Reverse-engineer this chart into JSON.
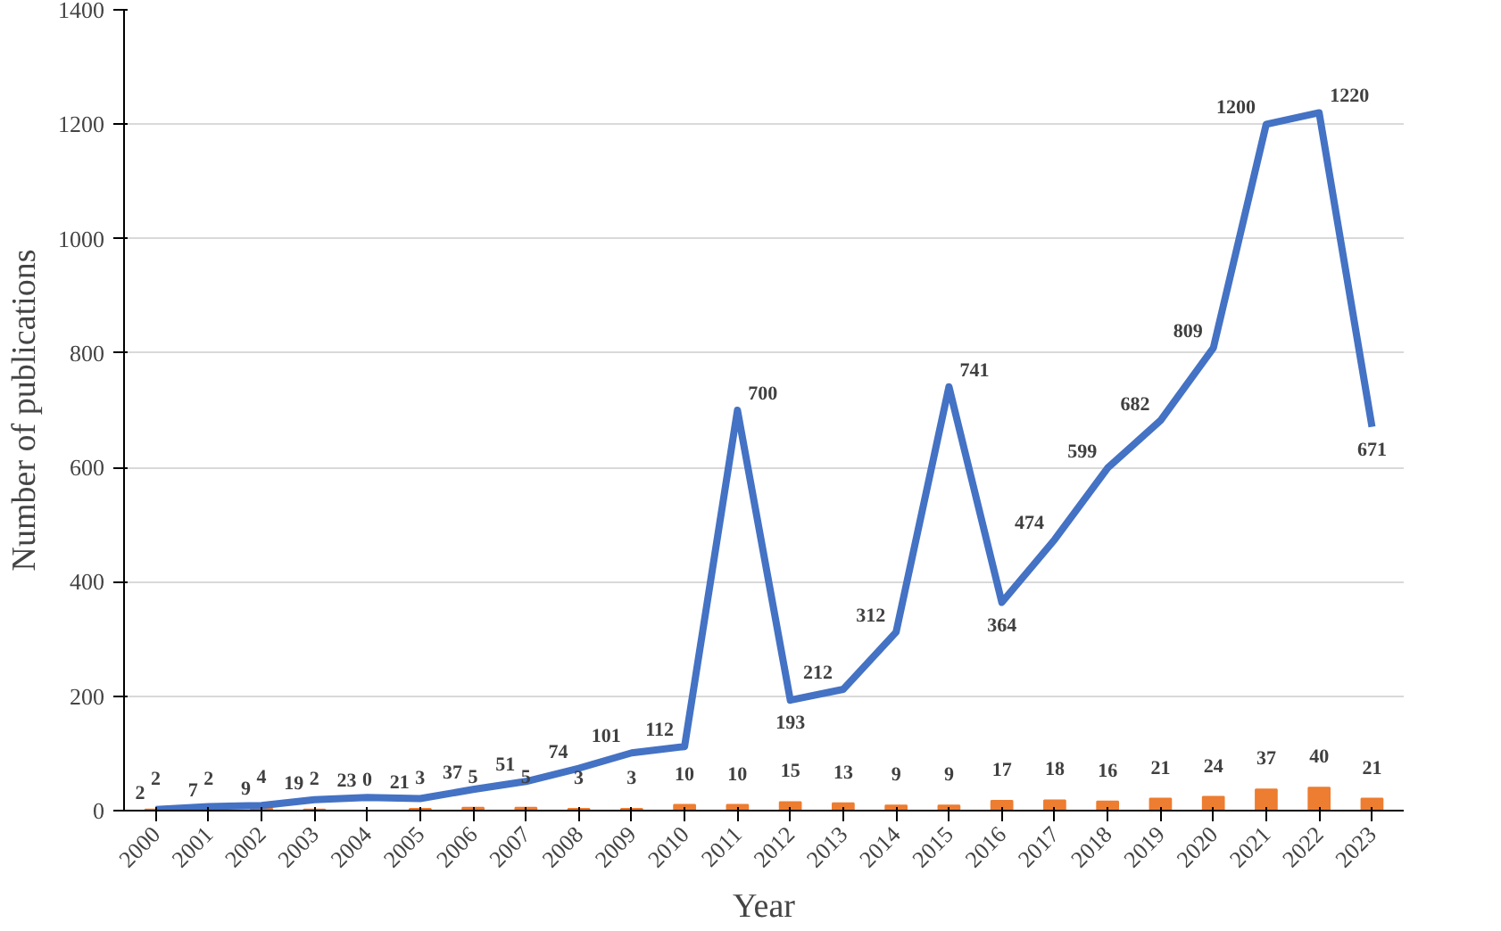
{
  "chart_data": {
    "type": "bar",
    "xlabel": "Year",
    "ylabel": "Number of publications",
    "categories": [
      "2000",
      "2001",
      "2002",
      "2003",
      "2004",
      "2005",
      "2006",
      "2007",
      "2008",
      "2009",
      "2010",
      "2011",
      "2012",
      "2013",
      "2014",
      "2015",
      "2016",
      "2017",
      "2018",
      "2019",
      "2020",
      "2021",
      "2022",
      "2023"
    ],
    "series": [
      {
        "color": "#ed7d31",
        "values": [
          2,
          2,
          4,
          2,
          0,
          3,
          5,
          5,
          3,
          3,
          10,
          10,
          15,
          13,
          9,
          9,
          17,
          18,
          16,
          21,
          24,
          37,
          40,
          21
        ]
      },
      {
        "type": "line",
        "color": "#4472c4",
        "values": [
          2,
          7,
          9,
          19,
          23,
          21,
          37,
          51,
          74,
          101,
          112,
          700,
          193,
          212,
          312,
          741,
          364,
          474,
          599,
          682,
          809,
          1200,
          1220,
          671
        ]
      }
    ],
    "ylim": [
      0,
      1400
    ],
    "yticks": [
      0,
      200,
      400,
      600,
      800,
      1000,
      1200,
      1400
    ],
    "grid": "y",
    "data_labels": true,
    "line_style": "solid",
    "marker": "none"
  }
}
